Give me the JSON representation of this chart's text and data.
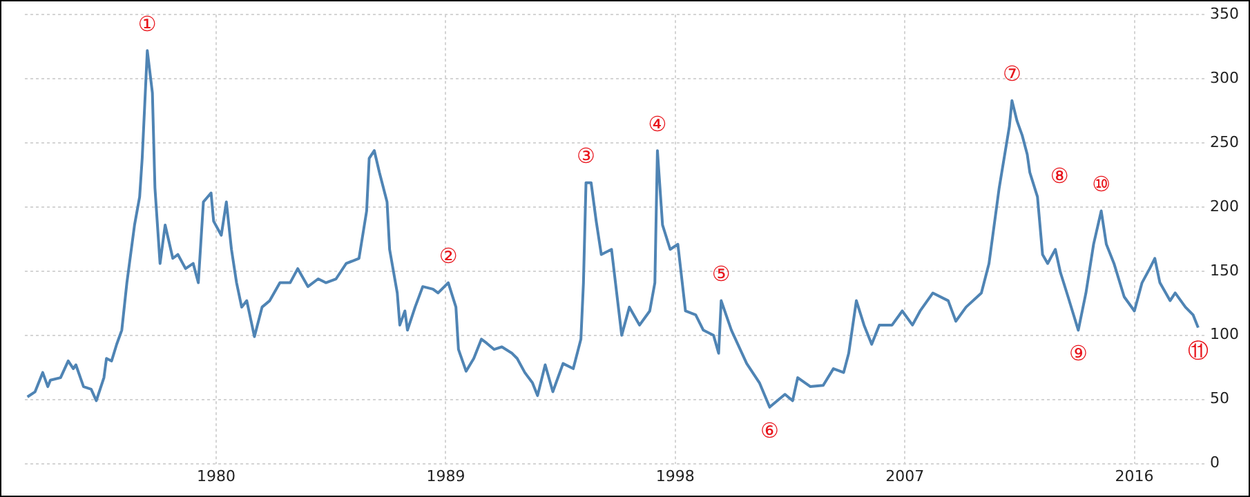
{
  "chart_data": {
    "type": "line",
    "x": [
      1972.6,
      1972.9,
      1973.2,
      1973.4,
      1973.5,
      1973.9,
      1974.2,
      1974.4,
      1974.5,
      1974.8,
      1975.1,
      1975.3,
      1975.6,
      1975.7,
      1975.9,
      1976.1,
      1976.3,
      1976.5,
      1976.8,
      1977.0,
      1977.1,
      1977.3,
      1977.5,
      1977.6,
      1977.8,
      1978.0,
      1978.3,
      1978.5,
      1978.8,
      1979.1,
      1979.3,
      1979.5,
      1979.8,
      1979.9,
      1980.2,
      1980.4,
      1980.6,
      1980.8,
      1981.0,
      1981.2,
      1981.5,
      1981.8,
      1982.1,
      1982.5,
      1982.9,
      1983.2,
      1983.6,
      1984.0,
      1984.3,
      1984.7,
      1985.1,
      1985.6,
      1985.9,
      1986.0,
      1986.2,
      1986.4,
      1986.7,
      1986.8,
      1987.1,
      1987.2,
      1987.4,
      1987.5,
      1987.8,
      1988.1,
      1988.5,
      1988.7,
      1989.1,
      1989.4,
      1989.5,
      1989.8,
      1990.1,
      1990.4,
      1990.6,
      1990.9,
      1991.2,
      1991.6,
      1991.8,
      1992.1,
      1992.4,
      1992.6,
      1992.9,
      1993.2,
      1993.6,
      1994.0,
      1994.3,
      1994.4,
      1994.5,
      1994.7,
      1994.9,
      1995.1,
      1995.5,
      1995.9,
      1996.2,
      1996.6,
      1997.0,
      1997.2,
      1997.3,
      1997.5,
      1997.8,
      1998.1,
      1998.4,
      1998.8,
      1999.1,
      1999.5,
      1999.7,
      1999.8,
      2000.2,
      2000.8,
      2001.3,
      2001.7,
      2002.3,
      2002.6,
      2002.8,
      2003.3,
      2003.8,
      2004.2,
      2004.6,
      2004.8,
      2005.1,
      2005.4,
      2005.7,
      2006.0,
      2006.5,
      2006.9,
      2007.3,
      2007.6,
      2008.1,
      2008.7,
      2009.0,
      2009.4,
      2010.0,
      2010.3,
      2010.7,
      2011.1,
      2011.2,
      2011.4,
      2011.6,
      2011.8,
      2011.9,
      2012.2,
      2012.4,
      2012.6,
      2012.9,
      2013.1,
      2013.4,
      2013.8,
      2014.1,
      2014.4,
      2014.7,
      2014.9,
      2015.2,
      2015.6,
      2016.0,
      2016.3,
      2016.6,
      2016.8,
      2017.0,
      2017.4,
      2017.6,
      2018.0,
      2018.3,
      2018.5
    ],
    "series": [
      {
        "color": "#4f84b4",
        "values": [
          52,
          56,
          71,
          60,
          65,
          67,
          80,
          74,
          77,
          60,
          58,
          49,
          67,
          82,
          80,
          93,
          104,
          141,
          186,
          208,
          238,
          322,
          289,
          215,
          156,
          186,
          160,
          163,
          152,
          156,
          141,
          204,
          211,
          189,
          178,
          204,
          167,
          141,
          122,
          127,
          99,
          122,
          127,
          141,
          141,
          152,
          138,
          144,
          141,
          144,
          156,
          160,
          197,
          238,
          244,
          227,
          204,
          167,
          133,
          108,
          119,
          104,
          122,
          138,
          136,
          133,
          141,
          122,
          89,
          72,
          82,
          97,
          94,
          89,
          91,
          86,
          82,
          71,
          63,
          53,
          77,
          56,
          78,
          74,
          97,
          141,
          219,
          219,
          189,
          163,
          167,
          100,
          122,
          108,
          119,
          141,
          244,
          186,
          167,
          171,
          119,
          116,
          104,
          100,
          86,
          127,
          104,
          78,
          63,
          44,
          54,
          49,
          67,
          60,
          61,
          74,
          71,
          86,
          127,
          108,
          93,
          108,
          108,
          119,
          108,
          119,
          133,
          127,
          111,
          122,
          133,
          156,
          215,
          263,
          283,
          267,
          256,
          241,
          227,
          208,
          163,
          156,
          167,
          149,
          130,
          104,
          133,
          171,
          197,
          171,
          156,
          130,
          119,
          141,
          152,
          160,
          141,
          127,
          133,
          122,
          116,
          106
        ]
      }
    ],
    "xlim": [
      1972.5,
      2018.8
    ],
    "xticks": [
      1980,
      1989,
      1998,
      2007,
      2016
    ],
    "ylim": [
      0,
      350
    ],
    "yticks": [
      0,
      50,
      100,
      150,
      200,
      250,
      300,
      350
    ],
    "grid": true,
    "marker": "none",
    "line_style": "solid",
    "annotations": [
      {
        "text": "①",
        "x": 1977.3,
        "y": 322
      },
      {
        "text": "②",
        "x": 1989.1,
        "y": 141
      },
      {
        "text": "③",
        "x": 1994.5,
        "y": 219
      },
      {
        "text": "④",
        "x": 1997.3,
        "y": 244
      },
      {
        "text": "⑤",
        "x": 1999.8,
        "y": 127
      },
      {
        "text": "⑥",
        "x": 2001.7,
        "y": 44
      },
      {
        "text": "⑦",
        "x": 2011.2,
        "y": 283
      },
      {
        "text": "⑧",
        "x": 2012.2,
        "y": 208
      },
      {
        "text": "⑨",
        "x": 2013.8,
        "y": 104
      },
      {
        "text": "⑩",
        "x": 2014.7,
        "y": 197
      },
      {
        "text": "⑪",
        "x": 2018.5,
        "y": 106
      }
    ]
  }
}
